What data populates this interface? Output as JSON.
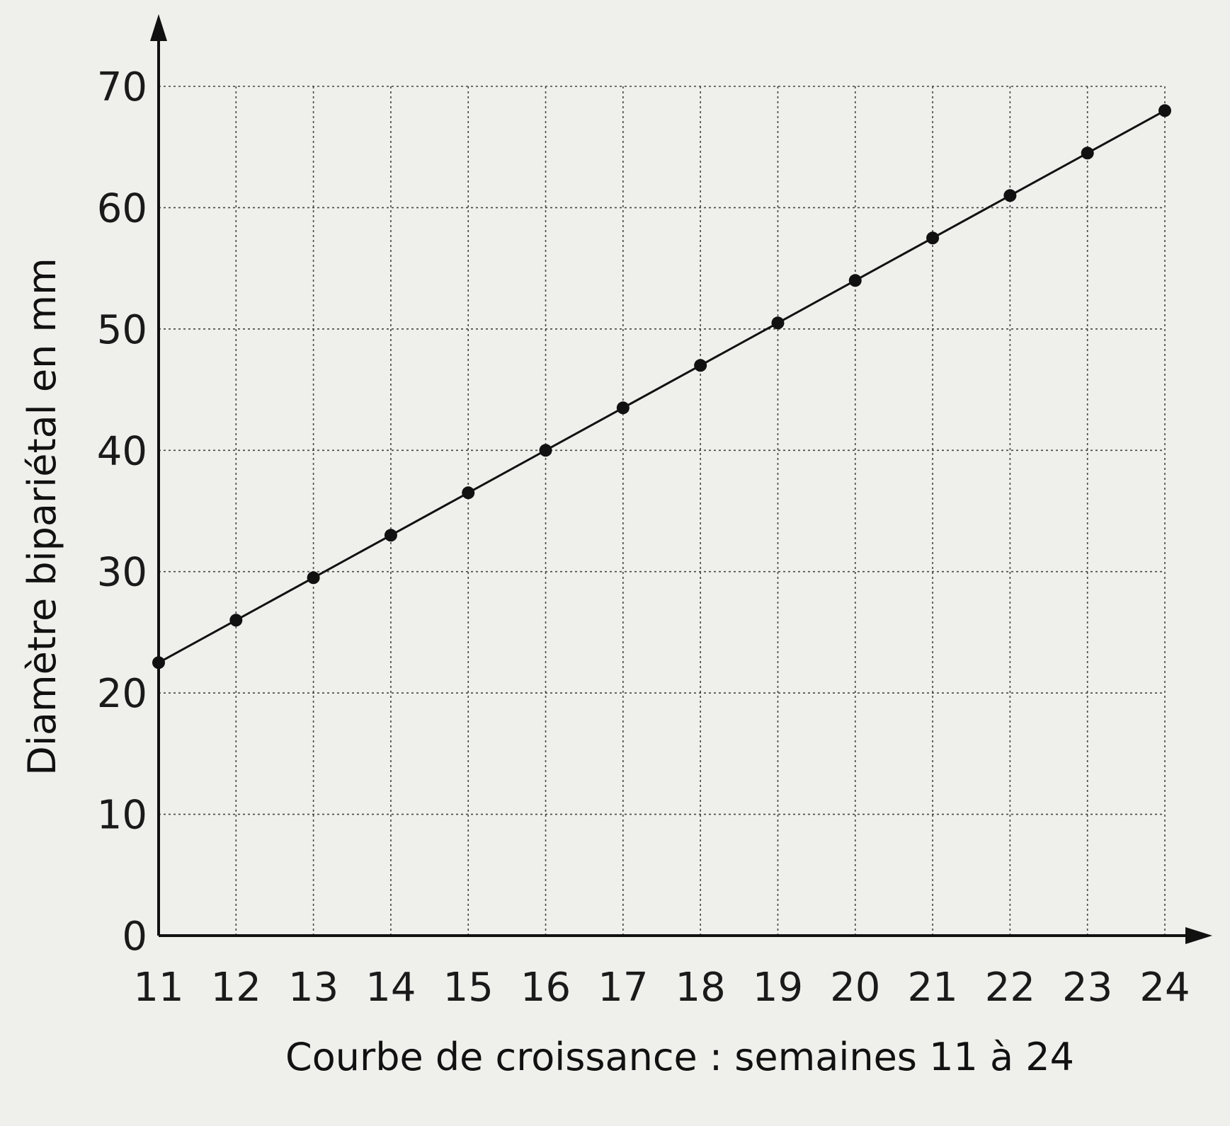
{
  "chart_data": {
    "type": "line",
    "title": "",
    "xlabel": "Courbe de croissance : semaines 11 à 24",
    "ylabel": "Diamètre bipariétal en mm",
    "xlim": [
      11,
      24
    ],
    "ylim": [
      0,
      70
    ],
    "x_ticks": [
      11,
      12,
      13,
      14,
      15,
      16,
      17,
      18,
      19,
      20,
      21,
      22,
      23,
      24
    ],
    "y_ticks": [
      0,
      10,
      20,
      30,
      40,
      50,
      60,
      70
    ],
    "x": [
      11,
      12,
      13,
      14,
      15,
      16,
      17,
      18,
      19,
      20,
      21,
      22,
      23,
      24
    ],
    "series": [
      {
        "values": [
          22.5,
          26,
          29.5,
          33,
          36.5,
          40,
          43.5,
          47,
          50.5,
          54,
          57.5,
          61,
          64.5,
          68
        ]
      }
    ],
    "grid": true,
    "grid_style": "dotted",
    "markers": "filled-circle",
    "colors": {
      "line": "#111111",
      "grid": "#444444",
      "background": "#efefec"
    }
  }
}
